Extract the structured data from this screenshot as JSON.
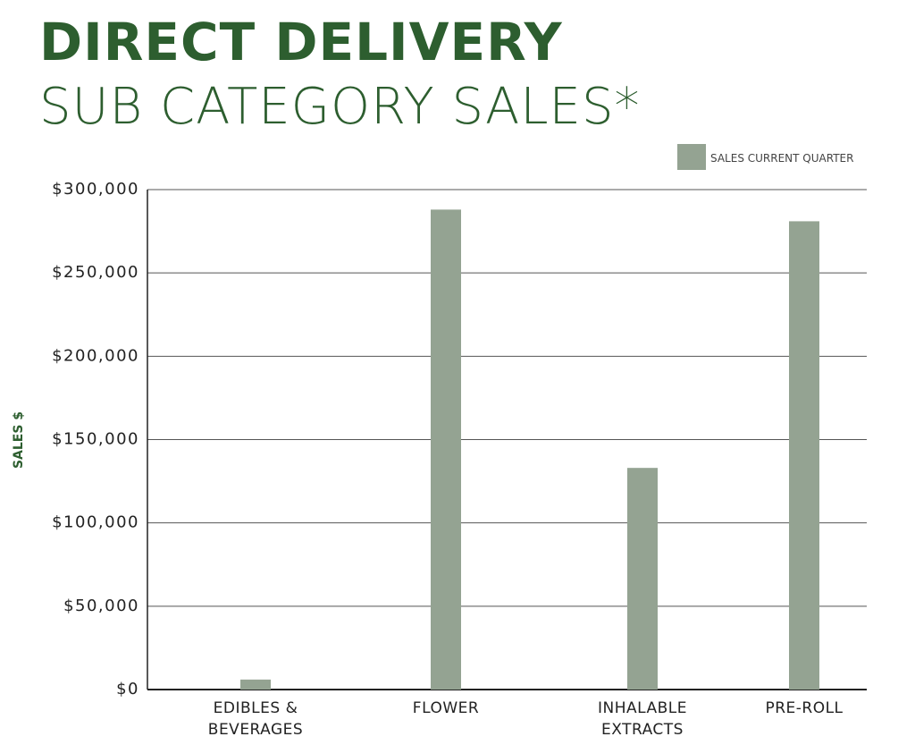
{
  "chart_data": {
    "type": "bar",
    "title": "DIRECT DELIVERY",
    "subtitle": "SUB CATEGORY SALES*",
    "y_label": "SALES $",
    "legend": "SALES CURRENT QUARTER",
    "legend_position": "top-right",
    "categories": [
      "EDIBLES & BEVERAGES",
      "FLOWER",
      "INHALABLE EXTRACTS",
      "PRE-ROLL"
    ],
    "series": [
      {
        "name": "SALES CURRENT QUARTER",
        "color": "#94a392",
        "values": [
          6000,
          288000,
          133000,
          281000
        ]
      }
    ],
    "ylim": [
      0,
      300000
    ],
    "yticks": [
      {
        "value": 0,
        "label": "$0"
      },
      {
        "value": 50000,
        "label": "$50,000"
      },
      {
        "value": 100000,
        "label": "$100,000"
      },
      {
        "value": 150000,
        "label": "$150,000"
      },
      {
        "value": 200000,
        "label": "$200,000"
      },
      {
        "value": 250000,
        "label": "$250,000"
      },
      {
        "value": 300000,
        "label": "$300,000"
      }
    ],
    "grid": true
  }
}
